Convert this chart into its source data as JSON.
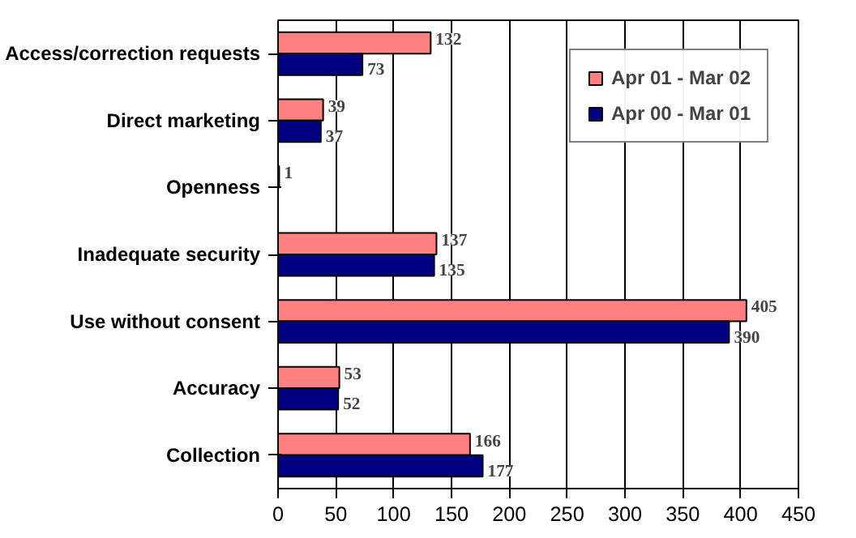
{
  "chart_data": {
    "type": "bar",
    "orientation": "horizontal",
    "categories": [
      "Access/correction requests",
      "Direct marketing",
      "Openness",
      "Inadequate security",
      "Use without consent",
      "Accuracy",
      "Collection"
    ],
    "series": [
      {
        "name": "Apr 01 - Mar 02",
        "color": "#ff8080",
        "values": [
          132,
          39,
          1,
          137,
          405,
          53,
          166
        ]
      },
      {
        "name": "Apr 00 - Mar 01",
        "color": "#000080",
        "values": [
          73,
          37,
          null,
          135,
          390,
          52,
          177
        ]
      }
    ],
    "xlim": [
      0,
      450
    ],
    "xticks": [
      0,
      50,
      100,
      150,
      200,
      250,
      300,
      350,
      400,
      450
    ],
    "grid": "x",
    "legend": "top right",
    "data_labels": true
  }
}
